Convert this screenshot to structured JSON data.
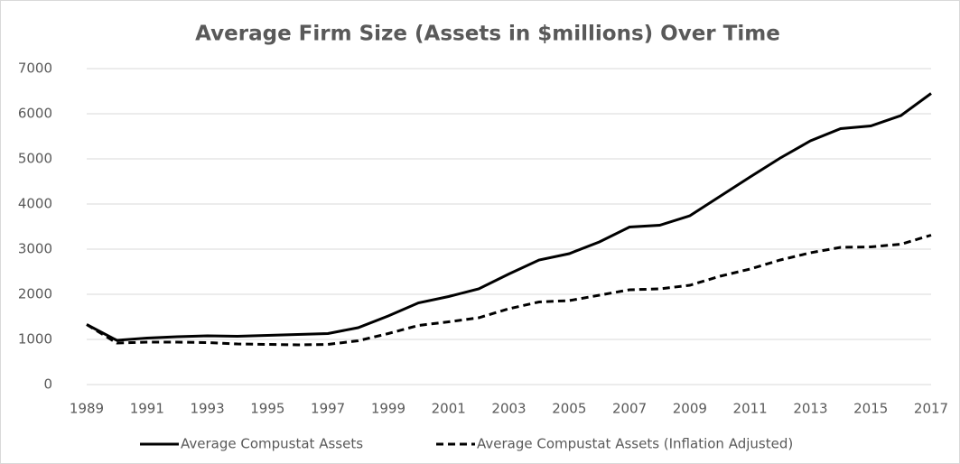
{
  "chart_data": {
    "type": "line",
    "title": "Average Firm Size (Assets in $millions) Over Time",
    "x": [
      1989,
      1990,
      1991,
      1992,
      1993,
      1994,
      1995,
      1996,
      1997,
      1998,
      1999,
      2000,
      2001,
      2002,
      2003,
      2004,
      2005,
      2006,
      2007,
      2008,
      2009,
      2010,
      2011,
      2012,
      2013,
      2014,
      2015,
      2016,
      2017
    ],
    "series": [
      {
        "name": "Average Compustat Assets",
        "color": "#000000",
        "line_style": "solid",
        "values": [
          1330,
          980,
          1030,
          1060,
          1080,
          1070,
          1090,
          1110,
          1130,
          1260,
          1520,
          1810,
          1950,
          2120,
          2450,
          2760,
          2900,
          3160,
          3490,
          3530,
          3740,
          4170,
          4600,
          5020,
          5400,
          5670,
          5730,
          5960,
          6450
        ]
      },
      {
        "name": "Average Compustat Assets (Inflation Adjusted)",
        "color": "#000000",
        "line_style": "dashed",
        "values": [
          1330,
          920,
          940,
          940,
          930,
          900,
          890,
          880,
          890,
          970,
          1130,
          1310,
          1390,
          1480,
          1680,
          1830,
          1860,
          1980,
          2100,
          2120,
          2200,
          2400,
          2560,
          2760,
          2920,
          3040,
          3050,
          3110,
          3310
        ]
      }
    ],
    "xlim": [
      1989,
      2017
    ],
    "xticks": [
      1989,
      1991,
      1993,
      1995,
      1997,
      1999,
      2001,
      2003,
      2005,
      2007,
      2009,
      2011,
      2013,
      2015,
      2017
    ],
    "ylim": [
      0,
      7000
    ],
    "yticks": [
      0,
      1000,
      2000,
      3000,
      4000,
      5000,
      6000,
      7000
    ],
    "grid": true,
    "legend": "bottom"
  }
}
